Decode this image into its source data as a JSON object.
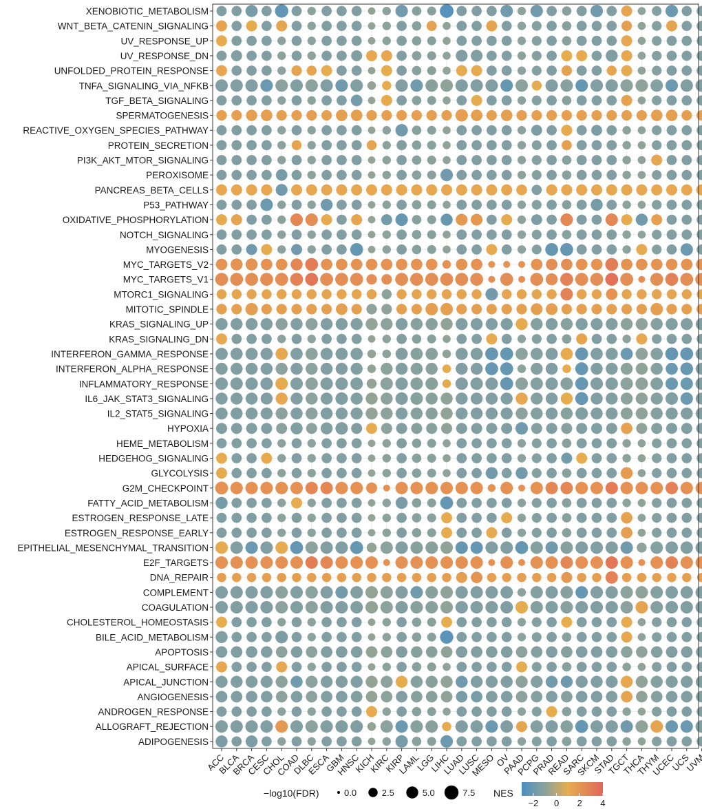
{
  "colors": {
    "panel_border": "#333333",
    "grid": "#ebebeb",
    "scale_low": "#4a8fc2",
    "scale_mid_low": "#8fa39a",
    "scale_mid": "#e6ad4f",
    "scale_high": "#e0665a"
  },
  "chart_data": {
    "type": "dot-matrix",
    "title": "",
    "xlabel": "",
    "ylabel": "",
    "x_categories": [
      "ACC",
      "BLCA",
      "BRCA",
      "CESC",
      "CHOL",
      "COAD",
      "DLBC",
      "ESCA",
      "GBM",
      "HNSC",
      "KICH",
      "KIRC",
      "KIRP",
      "LAML",
      "LGG",
      "LIHC",
      "LUAD",
      "LUSC",
      "MESO",
      "OV",
      "PAAD",
      "PCPG",
      "PRAD",
      "READ",
      "SARC",
      "SKCM",
      "STAD",
      "TGCT",
      "THCA",
      "THYM",
      "UCEC",
      "UCS",
      "UVM"
    ],
    "y_categories": [
      "XENOBIOTIC_METABOLISM",
      "WNT_BETA_CATENIN_SIGNALING",
      "UV_RESPONSE_UP",
      "UV_RESPONSE_DN",
      "UNFOLDED_PROTEIN_RESPONSE",
      "TNFA_SIGNALING_VIA_NFKB",
      "TGF_BETA_SIGNALING",
      "SPERMATOGENESIS",
      "REACTIVE_OXYGEN_SPECIES_PATHWAY",
      "PROTEIN_SECRETION",
      "PI3K_AKT_MTOR_SIGNALING",
      "PEROXISOME",
      "PANCREAS_BETA_CELLS",
      "P53_PATHWAY",
      "OXIDATIVE_PHOSPHORYLATION",
      "NOTCH_SIGNALING",
      "MYOGENESIS",
      "MYC_TARGETS_V2",
      "MYC_TARGETS_V1",
      "MTORC1_SIGNALING",
      "MITOTIC_SPINDLE",
      "KRAS_SIGNALING_UP",
      "KRAS_SIGNALING_DN",
      "INTERFERON_GAMMA_RESPONSE",
      "INTERFERON_ALPHA_RESPONSE",
      "INFLAMMATORY_RESPONSE",
      "IL6_JAK_STAT3_SIGNALING",
      "IL2_STAT5_SIGNALING",
      "HYPOXIA",
      "HEME_METABOLISM",
      "HEDGEHOG_SIGNALING",
      "GLYCOLYSIS",
      "G2M_CHECKPOINT",
      "FATTY_ACID_METABOLISM",
      "ESTROGEN_RESPONSE_LATE",
      "ESTROGEN_RESPONSE_EARLY",
      "EPITHELIAL_MESENCHYMAL_TRANSITION",
      "E2F_TARGETS",
      "DNA_REPAIR",
      "COMPLEMENT",
      "COAGULATION",
      "CHOLESTEROL_HOMEOSTASIS",
      "BILE_ACID_METABOLISM",
      "APOPTOSIS",
      "APICAL_SURFACE",
      "APICAL_JUNCTION",
      "ANGIOGENESIS",
      "ANDROGEN_RESPONSE",
      "ALLOGRAFT_REJECTION",
      "ADIPOGENESIS"
    ],
    "size_legend": {
      "title": "−log10(FDR)",
      "breaks": [
        0.0,
        2.5,
        5.0,
        7.5
      ],
      "labels": [
        "0.0",
        "2.5",
        "5.0",
        "7.5"
      ]
    },
    "color_legend": {
      "title": "NES",
      "range": [
        -3,
        4
      ],
      "ticks": [
        -2,
        0,
        2,
        4
      ],
      "labels": [
        "−2",
        "0",
        "2",
        "4"
      ]
    },
    "nes_profiles": {
      "ACC": -1,
      "BLCA": -1,
      "BRCA": -1,
      "CESC": -1,
      "CHOL": -0.6,
      "COAD": -1,
      "DLBC": -0.6,
      "ESCA": -1,
      "GBM": -1,
      "HNSC": -1,
      "KICH": -0.4,
      "KIRC": -0.6,
      "KIRP": -1,
      "LAML": -0.8,
      "LGG": -0.7,
      "LIHC": -0.5,
      "LUAD": -1,
      "LUSC": -1,
      "MESO": -1,
      "OV": -1,
      "PAAD": -0.6,
      "PCPG": -0.9,
      "PRAD": -1,
      "READ": -0.8,
      "SARC": -1,
      "SKCM": -1,
      "STAD": -1,
      "TGCT": -0.6,
      "THCA": -0.5,
      "THYM": -0.9,
      "UCEC": -1,
      "UCS": -1,
      "UVM": -1
    },
    "overrides": {
      "XENOBIOTIC_METABOLISM": {
        "nes": {
          "CHOL": -2.2,
          "LIHC": -2.6,
          "OV": -1.6,
          "PCPG": -1.6,
          "SKCM": -1.6,
          "UCEC": -1.8,
          "BRCA": -1.4,
          "KIRP": -1.6,
          "TGCT": 1.8
        },
        "fdr": {
          "CHOL": 6.5,
          "LIHC": 7.0,
          "OV": 5.5,
          "PCPG": 5.5,
          "SKCM": 5.5,
          "UCEC": 5.5,
          "BRCA": 5.2,
          "KIRP": 5.5
        }
      },
      "WNT_BETA_CATENIN_SIGNALING": {
        "nes": {
          "ACC": 1.8,
          "CHOL": 1.8,
          "LGG": 1.9,
          "TGCT": 2.0,
          "UCEC": 1.8,
          "BRCA": 1.6,
          "MESO": 1.8
        },
        "fdr": {
          "TGCT": 3.5,
          "LGG": 3.2
        }
      },
      "UV_RESPONSE_UP": {
        "nes": {
          "TGCT": 1.7,
          "ACC": 1.6
        },
        "fdr": {}
      },
      "UV_RESPONSE_DN": {
        "nes": {
          "KICH": 1.7,
          "KIRC": 1.7,
          "TGCT": 1.7,
          "READ": 1.5,
          "SARC": 1.6
        },
        "fdr": {
          "STAD": 5.0,
          "LUAD": 4.8,
          "LUSC": 4.8,
          "HNSC": 4.0,
          "BLCA": 4.0
        }
      },
      "UNFOLDED_PROTEIN_RESPONSE": {
        "nes": {
          "ACC": 1.7,
          "COAD": 1.8,
          "DLBC": 1.8,
          "READ": 1.9,
          "STAD": 1.8,
          "LUAD": 1.6,
          "LUSC": 1.6,
          "ESCA": 1.5,
          "TGCT": 1.6,
          "KIRC": 1.5
        },
        "fdr": {
          "COAD": 3.5,
          "READ": 3.5,
          "DLBC": 3.0,
          "STAD": 3.0
        }
      },
      "SPERMATOGENESIS": {
        "nes": {
          "ALL": 2.0
        },
        "fdr": {
          "ALL": 3.5,
          "LUAD": 5.5,
          "BRCA": 4.2,
          "CESC": 4.5,
          "GBM": 4.5,
          "HNSC": 4.5,
          "LUSC": 4.5,
          "OV": 4.5,
          "THYM": 4.5,
          "UCEC": 4.5
        }
      },
      "PROTEIN_SECRETION": {
        "nes": {
          "COAD": 1.8,
          "KICH": 1.8,
          "READ": 2.0
        },
        "fdr": {
          "COAD": 3.0,
          "KICH": 3.0,
          "READ": 3.2
        }
      },
      "PI3K_AKT_MTOR_SIGNALING": {
        "nes": {
          "THYM": 1.7
        },
        "fdr": {}
      },
      "PEROXISOME": {
        "nes": {
          "CHOL": -1.4,
          "LIHC": -1.6
        },
        "fdr": {
          "CHOL": 4.5,
          "LIHC": 5.5
        }
      },
      "PANCREAS_BETA_CELLS": {
        "nes": {
          "ALL": 1.7,
          "CHOL": -1.6,
          "PCPG": -1.0
        },
        "fdr": {
          "CHOL": 4.8,
          "PAAD": 3.8
        }
      },
      "P53_PATHWAY": {
        "nes": {
          "CESC": -1.8,
          "ESCA": -1.6,
          "SKCM": -1.4
        },
        "fdr": {
          "CESC": 5.5,
          "ESCA": 5.0,
          "SKCM": 5.0
        }
      },
      "OXIDATIVE_PHOSPHORYLATION": {
        "nes": {
          "COAD": 2.8,
          "DLBC": 2.6,
          "READ": 2.8,
          "STAD": 2.8,
          "LUAD": 2.2,
          "LUSC": 2.2,
          "THCA": -1.6,
          "KIRP": -2.0,
          "LIHC": -1.9,
          "KIRC": -1.5,
          "ACC": 1.6,
          "BLCA": 1.8,
          "OV": 1.6,
          "PCPG": -1.2,
          "TGCT": 1.6,
          "THYM": 2.0,
          "HNSC": 1.8,
          "ESCA": 1.6
        },
        "fdr": {
          "COAD": 5.5,
          "DLBC": 5.5,
          "READ": 5.5,
          "STAD": 5.5,
          "KIRP": 5.5,
          "LIHC": 5.0,
          "THCA": 5.0,
          "LUAD": 4.8,
          "LUSC": 4.8
        }
      },
      "MYOGENESIS": {
        "nes": {
          "HNSC": -2.0,
          "PRAD": -2.0,
          "READ": -2.0,
          "UCS": -1.8,
          "COAD": -1.6,
          "BRCA": -1.6,
          "CESC": 1.5,
          "MESO": 1.6,
          "THCA": 1.6
        },
        "fdr": {
          "HNSC": 6.0,
          "PRAD": 6.0,
          "READ": 6.0,
          "UCS": 5.5
        }
      },
      "MYC_TARGETS_V2": {
        "nes": {
          "ALL": 2.4,
          "DLBC": 3.2,
          "STAD": 3.2,
          "COAD": 2.8,
          "PRAD": 2.6,
          "READ": 2.6
        },
        "fdr": {
          "ALL": 4.5,
          "DLBC": 6.0,
          "STAD": 6.0,
          "COAD": 5.0,
          "BRCA": 5.0,
          "BLCA": 5.0,
          "MESO": 1.0,
          "OV": 1.0,
          "PAAD": 1.0,
          "LIHC": 2.0
        }
      },
      "MYC_TARGETS_V1": {
        "nes": {
          "ALL": 2.6,
          "DLBC": 3.4,
          "STAD": 3.6,
          "COAD": 3.0,
          "READ": 3.0,
          "UCEC": 3.0
        },
        "fdr": {
          "ALL": 6.0,
          "MESO": 1.0,
          "PAAD": 1.0,
          "THCA": 1.0,
          "KIRC": 3.5,
          "KICH": 3.5,
          "PRAD": 5.0
        }
      },
      "MTORC1_SIGNALING": {
        "nes": {
          "ALL": 1.8,
          "MESO": -1.5,
          "KIRC": -0.6,
          "READ": 3.0,
          "STAD": 2.4
        },
        "fdr": {
          "ALL": 3.0,
          "MESO": 5.5,
          "READ": 5.5,
          "STAD": 4.5
        }
      },
      "MITOTIC_SPINDLE": {
        "nes": {
          "ALL": 2.0,
          "KIRC": -0.5,
          "KICH": -0.5
        },
        "fdr": {
          "ALL": 3.5,
          "BRCA": 5.5,
          "LGG": 5.5,
          "LIHC": 5.5,
          "THYM": 5.5,
          "GBM": 4.5,
          "PCPG": 4.8,
          "PRAD": 4.8
        }
      },
      "KRAS_SIGNALING_UP": {
        "nes": {
          "PAAD": 1.6
        },
        "fdr": {
          "ALL": 5.0
        }
      },
      "KRAS_SIGNALING_DN": {
        "nes": {
          "ACC": 1.7,
          "SARC": 1.8,
          "THCA": 1.7,
          "MESO": 1.6
        },
        "fdr": {}
      },
      "INTERFERON_GAMMA_RESPONSE": {
        "nes": {
          "MESO": -2.0,
          "OV": -2.0,
          "SARC": -2.0,
          "UCEC": -2.0,
          "UCS": -2.0,
          "TGCT": -1.8,
          "CHOL": 1.7,
          "READ": 1.6
        },
        "fdr": {
          "ALL": 5.2,
          "MESO": 6.0,
          "OV": 6.0,
          "SARC": 6.0,
          "UCEC": 6.0,
          "UCS": 6.0,
          "KICH": 2.0,
          "KIRC": 2.0,
          "LIHC": 2.0
        }
      },
      "INTERFERON_ALPHA_RESPONSE": {
        "nes": {
          "MESO": -2.0,
          "OV": -2.0,
          "SARC": -2.0,
          "UCS": -1.9,
          "UCEC": -1.8,
          "READ": 1.6,
          "LIHC": 1.6
        },
        "fdr": {
          "ALL": 5.0,
          "MESO": 6.0,
          "OV": 6.0,
          "SARC": 6.0,
          "UCS": 5.8,
          "KICH": 2.0,
          "LIHC": 2.0,
          "PAAD": 2.0,
          "READ": 2.0
        }
      },
      "INFLAMMATORY_RESPONSE": {
        "nes": {
          "OV": -2.0,
          "SARC": -2.0,
          "UCEC": -1.8,
          "UCS": -1.8,
          "CHOL": 1.6,
          "LIHC": 1.6
        },
        "fdr": {
          "ALL": 5.5,
          "OV": 6.0,
          "SARC": 6.0,
          "KICH": 3.0,
          "LIHC": 2.0
        }
      },
      "IL6_JAK_STAT3_SIGNALING": {
        "nes": {
          "SARC": -2.0,
          "UCS": -1.8,
          "CHOL": 1.7,
          "PAAD": 1.7,
          "READ": 1.5
        },
        "fdr": {
          "ALL": 5.0,
          "SARC": 6.0,
          "UCS": 5.5,
          "UCEC": 5.5,
          "GBM": 5.5,
          "KIRP": 5.5,
          "LAML": 5.5
        }
      },
      "IL2_STAT5_SIGNALING": {
        "nes": {},
        "fdr": {
          "ALL": 5.0,
          "SARC": 5.5
        }
      },
      "HYPOXIA": {
        "nes": {
          "PAAD": -1.6,
          "TGCT": 1.9,
          "KICH": 1.6
        },
        "fdr": {
          "ALL": 4.0,
          "PAAD": 5.5,
          "GBM": 5.5,
          "TGCT": 4.5,
          "COAD": 5.0,
          "ESCA": 5.0
        }
      },
      "HEME_METABOLISM": {
        "nes": {},
        "fdr": {}
      },
      "HEDGEHOG_SIGNALING": {
        "nes": {
          "ACC": 1.6,
          "CESC": 1.6,
          "READ": -1.5,
          "SARC": 1.5
        },
        "fdr": {}
      },
      "GLYCOLYSIS": {
        "nes": {
          "MESO": -1.6,
          "PAAD": -1.6,
          "TGCT": 2.1,
          "ACC": 1.6
        },
        "fdr": {
          "MESO": 5.0,
          "PAAD": 5.0,
          "TGCT": 5.0
        }
      },
      "G2M_CHECKPOINT": {
        "nes": {
          "ALL": 2.5,
          "ESCA": 2.8,
          "DLBC": 2.8,
          "STAD": 3.2,
          "UCEC": 3.0,
          "PRAD": 2.8,
          "READ": 2.8
        },
        "fdr": {
          "ALL": 5.5,
          "ACC": 6.0,
          "MESO": 1.5,
          "PAAD": 1.0,
          "KIRC": 1.0,
          "KICH": 4.0
        }
      },
      "FATTY_ACID_METABOLISM": {
        "nes": {
          "LIHC": -2.0,
          "ACC": -1.4,
          "KIRP": -1.3,
          "COAD": 1.6
        },
        "fdr": {
          "LIHC": 6.0,
          "ACC": 5.0,
          "KIRP": 5.0
        }
      },
      "ESTROGEN_RESPONSE_LATE": {
        "nes": {
          "TGCT": 1.9,
          "LIHC": 1.6,
          "OV": 1.6
        },
        "fdr": {
          "TGCT": 4.5
        }
      },
      "ESTROGEN_RESPONSE_EARLY": {
        "nes": {
          "TGCT": 2.0,
          "LIHC": 1.6,
          "MESO": 1.6
        },
        "fdr": {
          "TGCT": 4.5
        }
      },
      "EPITHELIAL_MESENCHYMAL_TRANSITION": {
        "nes": {
          "COAD": -2.0,
          "HNSC": -2.0,
          "PAAD": -2.0,
          "LUSC": -2.0,
          "LUAD": -2.0,
          "BRCA": -1.8,
          "PRAD": -1.6,
          "TGCT": -1.6,
          "ACC": 1.6,
          "CHOL": 1.6
        },
        "fdr": {
          "ALL": 5.5,
          "COAD": 6.0,
          "HNSC": 6.0,
          "PAAD": 6.0,
          "KICH": 3.0,
          "THCA": 3.0
        }
      },
      "E2F_TARGETS": {
        "nes": {
          "ALL": 2.5,
          "DLBC": 3.2,
          "STAD": 3.4,
          "ESCA": 2.8,
          "UCEC": 3.0,
          "READ": 2.8
        },
        "fdr": {
          "ALL": 5.5,
          "MESO": 1.0,
          "PAAD": 1.0,
          "KIRC": 1.0,
          "THCA": 1.0
        }
      },
      "DNA_REPAIR": {
        "nes": {
          "ALL": 2.0,
          "STAD": 3.0,
          "LUSC": 2.4,
          "READ": 2.2
        },
        "fdr": {
          "ALL": 2.5,
          "STAD": 5.5,
          "LUSC": 4.5,
          "READ": 4.0,
          "LUAD": 4.0
        }
      },
      "COMPLEMENT": {
        "nes": {
          "SARC": -2.0,
          "LAML": -1.6,
          "GBM": -1.5
        },
        "fdr": {
          "ALL": 5.5,
          "PAAD": 2.0
        }
      },
      "COAGULATION": {
        "nes": {
          "THCA": 1.8,
          "PAAD": 1.5
        },
        "fdr": {
          "ALL": 5.5
        }
      },
      "CHOLESTEROL_HOMEOSTASIS": {
        "nes": {
          "TGCT": 1.6,
          "ACC": 1.5,
          "LIHC": 1.5,
          "READ": 1.5
        },
        "fdr": {}
      },
      "BILE_ACID_METABOLISM": {
        "nes": {
          "LIHC": -2.4,
          "CHOL": -1.2,
          "ACC": -1.0,
          "TGCT": 1.7
        },
        "fdr": {
          "LIHC": 6.5,
          "CHOL": 5.5,
          "ACC": 5.0
        }
      },
      "APOPTOSIS": {
        "nes": {},
        "fdr": {
          "ALL": 4.5
        }
      },
      "APICAL_SURFACE": {
        "nes": {
          "ACC": 1.7,
          "CHOL": 1.7,
          "PAAD": 1.5
        },
        "fdr": {}
      },
      "APICAL_JUNCTION": {
        "nes": {
          "LUAD": -1.6,
          "PRAD": -1.6,
          "READ": -1.7,
          "COAD": -1.6,
          "TGCT": 1.7,
          "KIRP": 1.5
        },
        "fdr": {
          "ALL": 5.0
        }
      },
      "ANGIOGENESIS": {
        "nes": {
          "TGCT": 1.8,
          "LUAD": -1.3,
          "LUSC": -1.3
        },
        "fdr": {
          "ALL": 4.5
        }
      },
      "ANDROGEN_RESPONSE": {
        "nes": {
          "KICH": 1.6,
          "PRAD": 1.5
        },
        "fdr": {}
      },
      "ALLOGRAFT_REJECTION": {
        "nes": {
          "CHOL": 2.2,
          "THYM": 1.8,
          "PAAD": 1.8,
          "SARC": -2.0,
          "KIRP": -1.8,
          "MESO": -1.8,
          "UCEC": -1.8,
          "UCS": -1.8,
          "TGCT": -1.6,
          "LIHC": 1.6
        },
        "fdr": {
          "ALL": 5.5,
          "CHOL": 5.5,
          "SARC": 6.0,
          "KICH": 2.0,
          "LIHC": 2.5,
          "PAAD": 4.0
        }
      },
      "ADIPOGENESIS": {
        "nes": {
          "LIHC": -1.8,
          "KIRP": -1.4,
          "BRCA": -1.2,
          "ACC": -1.2
        },
        "fdr": {
          "LIHC": 5.5,
          "KIRP": 5.5,
          "BRCA": 5.0,
          "ACC": 5.0
        }
      },
      "TNFA_SIGNALING_VIA_NFKB": {
        "nes": {
          "OV": -2.0,
          "SARC": -2.0,
          "UCEC": -1.8,
          "CESC": -1.8,
          "LAML": -1.6,
          "GBM": -1.6,
          "KIRC": 1.5,
          "PCPG": 1.6
        },
        "fdr": {
          "ALL": 5.5,
          "KICH": 2.0,
          "KIRC": 2.5,
          "PCPG": 3.0
        }
      },
      "TGF_BETA_SIGNALING": {
        "nes": {
          "HNSC": -1.5,
          "TGCT": 1.9,
          "KIRC": 1.6,
          "LUSC": 1.5
        },
        "fdr": {
          "TGCT": 4.0,
          "HNSC": 4.5
        }
      },
      "REACTIVE_OXYGEN_SPECIES_PATHWAY": {
        "nes": {
          "KIRP": -1.6,
          "PCPG": -1.2,
          "SKCM": -1.2,
          "READ": 1.6
        },
        "fdr": {
          "KIRP": 5.5
        }
      },
      "NOTCH_SIGNALING": {
        "nes": {},
        "fdr": {}
      }
    }
  }
}
